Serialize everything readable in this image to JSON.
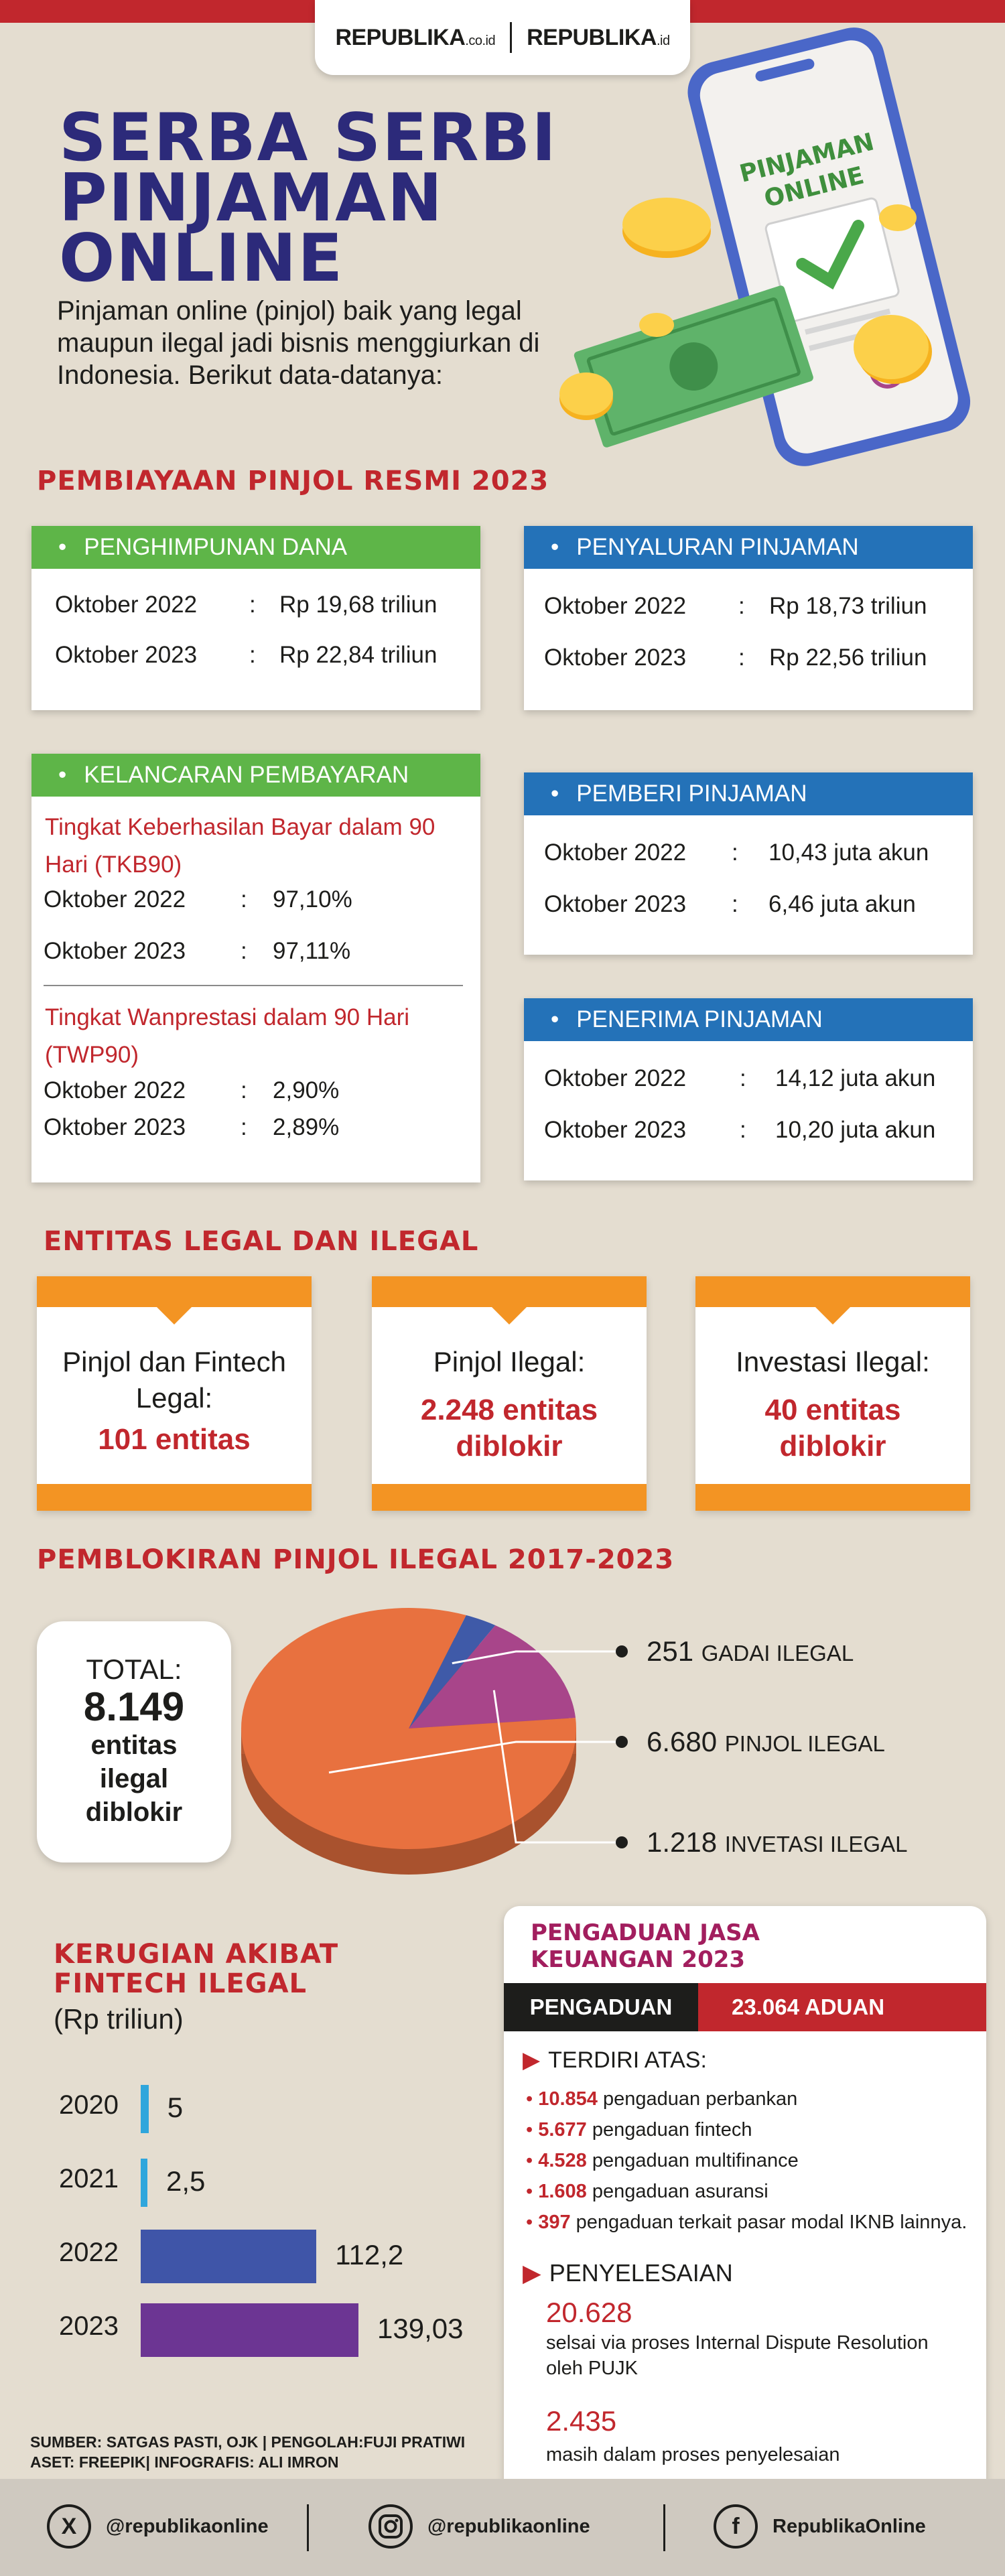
{
  "header": {
    "logo_left": "REPUBLIKA",
    "logo_left_suffix": ".co.id",
    "logo_right": "REPUBLIKA",
    "logo_right_suffix": ".id"
  },
  "title": [
    "SERBA SERBI",
    "PINJAMAN",
    "ONLINE"
  ],
  "intro": "Pinjaman online (pinjol) baik yang legal maupun ilegal jadi bisnis menggiurkan di Indonesia. Berikut data-datanya:",
  "phone": {
    "line1": "PINJAMAN",
    "line2": "ONLINE"
  },
  "section1": {
    "title": "PEMBIAYAAN PINJOL RESMI 2023",
    "penghimpunan": {
      "label": "PENGHIMPUNAN DANA",
      "rows": [
        {
          "period": "Oktober 2022",
          "sep": ":",
          "value": "Rp 19,68 triliun"
        },
        {
          "period": "Oktober 2023",
          "sep": ":",
          "value": "Rp 22,84 triliun"
        }
      ]
    },
    "penyaluran": {
      "label": "PENYALURAN PINJAMAN",
      "rows": [
        {
          "period": "Oktober 2022",
          "sep": ":",
          "value": "Rp 18,73 triliun"
        },
        {
          "period": "Oktober 2023",
          "sep": ":",
          "value": "Rp 22,56 triliun"
        }
      ]
    },
    "kelancaran": {
      "label": "KELANCARAN PEMBAYARAN",
      "tkb_title": "Tingkat Keberhasilan Bayar dalam 90 Hari (TKB90)",
      "tkb_rows": [
        {
          "period": "Oktober 2022",
          "sep": ":",
          "value": "97,10%"
        },
        {
          "period": "Oktober 2023",
          "sep": ":",
          "value": "97,11%"
        }
      ],
      "twp_title": "Tingkat Wanprestasi dalam 90 Hari (TWP90)",
      "twp_rows": [
        {
          "period": "Oktober 2022",
          "sep": ":",
          "value": "2,90%"
        },
        {
          "period": "Oktober 2023",
          "sep": ":",
          "value": "2,89%"
        }
      ]
    },
    "pemberi": {
      "label": "PEMBERI PINJAMAN",
      "rows": [
        {
          "period": "Oktober 2022",
          "sep": ":",
          "value": "10,43 juta akun"
        },
        {
          "period": "Oktober 2023",
          "sep": ":",
          "value": "6,46 juta akun"
        }
      ]
    },
    "penerima": {
      "label": "PENERIMA PINJAMAN",
      "rows": [
        {
          "period": "Oktober 2022",
          "sep": ":",
          "value": "14,12 juta akun"
        },
        {
          "period": "Oktober 2023",
          "sep": ":",
          "value": "10,20 juta akun"
        }
      ]
    }
  },
  "section2": {
    "title": "ENTITAS LEGAL DAN ILEGAL",
    "boxes": [
      {
        "text": "Pinjol dan Fintech Legal:",
        "highlight": "101 entitas"
      },
      {
        "text": "Pinjol Ilegal:",
        "highlight": "2.248 entitas diblokir"
      },
      {
        "text": "Investasi Ilegal:",
        "highlight": "40 entitas diblokir"
      }
    ]
  },
  "section3": {
    "title": "PEMBLOKIRAN PINJOL ILEGAL 2017-2023",
    "total_label": "TOTAL:",
    "total_value": "8.149",
    "total_desc": "entitas ilegal diblokir"
  },
  "chart_data": [
    {
      "type": "pie",
      "title": "PEMBLOKIRAN PINJOL ILEGAL 2017-2023",
      "slices": [
        {
          "label": "GADAI ILEGAL",
          "value": 251,
          "value_label": "251",
          "color": "#3f5aa8"
        },
        {
          "label": "PINJOL ILEGAL",
          "value": 6680,
          "value_label": "6.680",
          "color": "#e8713f"
        },
        {
          "label": "INVETASI ILEGAL",
          "value": 1218,
          "value_label": "1.218",
          "color": "#a8458a"
        }
      ]
    },
    {
      "type": "bar",
      "title": "KERUGIAN AKIBAT FINTECH ILEGAL",
      "subtitle": "(Rp triliun)",
      "categories": [
        "2020",
        "2021",
        "2022",
        "2023"
      ],
      "values": [
        5,
        2.5,
        112.2,
        139.03
      ],
      "value_labels": [
        "5",
        "2,5",
        "112,2",
        "139,03"
      ],
      "colors": [
        "#2fa6dc",
        "#2fa6dc",
        "#3f55a8",
        "#6c3593"
      ],
      "xlim": [
        0,
        139.03
      ]
    }
  ],
  "section5": {
    "title": "PENGADUAN JASA KEUANGAN 2023",
    "badge_label": "PENGADUAN",
    "badge_value": "23.064 ADUAN",
    "terdiri_label": "TERDIRI ATAS:",
    "items": [
      {
        "num": "10.854",
        "text": "pengaduan perbankan"
      },
      {
        "num": "5.677",
        "text": "pengaduan fintech"
      },
      {
        "num": "4.528",
        "text": "pengaduan multifinance"
      },
      {
        "num": "1.608",
        "text": "pengaduan asuransi"
      },
      {
        "num": "397",
        "text": "pengaduan terkait pasar modal IKNB lainnya."
      }
    ],
    "penyelesaian_label": "PENYELESAIAN",
    "res1_num": "20.628",
    "res1_text": "selsai via proses Internal Dispute Resolution oleh PUJK",
    "res2_num": "2.435",
    "res2_text": "masih dalam proses penyelesaian"
  },
  "credits": {
    "line1": "SUMBER: SATGAS PASTI, OJK | PENGOLAH:FUJI PRATIWI",
    "line2": "ASET: FREEPIK| INFOGRAFIS: ALI IMRON"
  },
  "footer": {
    "x": {
      "icon": "X",
      "handle": "@republikaonline"
    },
    "instagram": {
      "handle": "@republikaonline"
    },
    "facebook": {
      "icon": "f",
      "handle": "RepublikaOnline"
    }
  }
}
